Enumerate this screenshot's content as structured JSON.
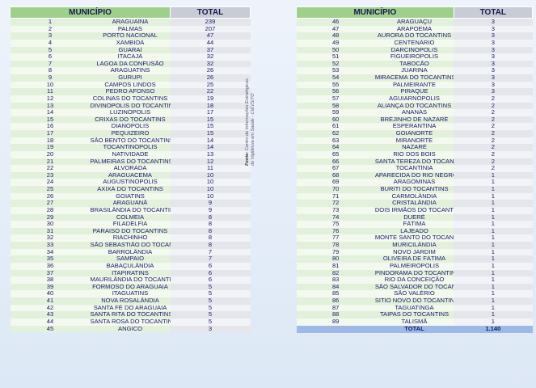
{
  "headers": {
    "municipio": "MUNICÍPIO",
    "total": "TOTAL"
  },
  "source": {
    "label": "Fonte:",
    "line1": "Centro de Informações Estratégicas",
    "line2": "do Vigilância em Saúde - CIEVS/TO"
  },
  "left_rows": [
    [
      "1",
      "ARAGUAÍNA",
      "239"
    ],
    [
      "2",
      "PALMAS",
      "207"
    ],
    [
      "3",
      "PORTO NACIONAL",
      "47"
    ],
    [
      "4",
      "XAMBIOÁ",
      "44"
    ],
    [
      "5",
      "GUARAÍ",
      "37"
    ],
    [
      "6",
      "ITACAJÁ",
      "32"
    ],
    [
      "7",
      "LAGOA DA CONFUSÃO",
      "32"
    ],
    [
      "8",
      "ARAGUATINS",
      "26"
    ],
    [
      "9",
      "GURUPI",
      "26"
    ],
    [
      "10",
      "CAMPOS LINDOS",
      "25"
    ],
    [
      "11",
      "PEDRO AFONSO",
      "22"
    ],
    [
      "12",
      "COLINAS DO TOCANTINS",
      "19"
    ],
    [
      "13",
      "DIVINÓPOLIS DO TOCANTINS",
      "18"
    ],
    [
      "14",
      "LUZINÓPOLIS",
      "17"
    ],
    [
      "15",
      "CRIXAS DO TOCANTINS",
      "15"
    ],
    [
      "16",
      "DIANÓPOLIS",
      "15"
    ],
    [
      "17",
      "PEQUIZEIRO",
      "15"
    ],
    [
      "18",
      "SÃO BENTO DO TOCANTINS",
      "14"
    ],
    [
      "19",
      "TOCANTINÓPOLIS",
      "14"
    ],
    [
      "20",
      "NATIVIDADE",
      "13"
    ],
    [
      "21",
      "PALMEIRAS DO TOCANTINS",
      "12"
    ],
    [
      "22",
      "ALVORADA",
      "11"
    ],
    [
      "23",
      "ARAGUACEMA",
      "10"
    ],
    [
      "24",
      "AUGUSTINÓPOLIS",
      "10"
    ],
    [
      "25",
      "AXIXÁ DO TOCANTINS",
      "10"
    ],
    [
      "26",
      "GOIATINS",
      "10"
    ],
    [
      "27",
      "ARAGUANÃ",
      "9"
    ],
    [
      "28",
      "BRASILÂNDIA DO TOCANTINS",
      "9"
    ],
    [
      "29",
      "COLMEIA",
      "8"
    ],
    [
      "30",
      "FILADÉLFIA",
      "8"
    ],
    [
      "31",
      "PARAISO DO TOCANTINS",
      "8"
    ],
    [
      "32",
      "RIACHINHO",
      "8"
    ],
    [
      "33",
      "SÃO SEBASTIÃO DO TOCANTINS",
      "8"
    ],
    [
      "34",
      "BARROLÂNDIA",
      "7"
    ],
    [
      "35",
      "SAMPAIO",
      "7"
    ],
    [
      "36",
      "BABAÇULÂNDIA",
      "6"
    ],
    [
      "37",
      "ITAPIRATINS",
      "6"
    ],
    [
      "38",
      "MAURILÂNDIA DO TOCANTINS",
      "6"
    ],
    [
      "39",
      "FORMOSO DO ARAGUAIA",
      "5"
    ],
    [
      "40",
      "ITAGUATINS",
      "5"
    ],
    [
      "41",
      "NOVA ROSALÂNDIA",
      "5"
    ],
    [
      "42",
      "SANTA FÉ DO ARAGUAIA",
      "5"
    ],
    [
      "43",
      "SANTA RITA DO TOCANTINS",
      "5"
    ],
    [
      "44",
      "SANTA ROSA DO TOCANTINS",
      "5"
    ],
    [
      "45",
      "ANGICO",
      "3"
    ]
  ],
  "right_rows": [
    [
      "46",
      "ARAGUAÇU",
      "3"
    ],
    [
      "47",
      "ARAPOEMA",
      "3"
    ],
    [
      "48",
      "AURORA DO TOCANTINS",
      "3"
    ],
    [
      "49",
      "CENTENÁRIO",
      "3"
    ],
    [
      "50",
      "DARCINÓPOLIS",
      "3"
    ],
    [
      "51",
      "FIGUEIRÓPOLIS",
      "3"
    ],
    [
      "52",
      "TABOCÃO",
      "3"
    ],
    [
      "53",
      "JUARINA",
      "3"
    ],
    [
      "54",
      "MIRACEMA DO TOCANTINS",
      "3"
    ],
    [
      "55",
      "PALMEIRANTE",
      "3"
    ],
    [
      "56",
      "PIRAQUE",
      "3"
    ],
    [
      "57",
      "AGUIARNÓPOLIS",
      "2"
    ],
    [
      "58",
      "ALIANÇA DO TOCANTINS",
      "2"
    ],
    [
      "59",
      "ANANÁS",
      "2"
    ],
    [
      "60",
      "BREJINHO DE NAZARÉ",
      "2"
    ],
    [
      "61",
      "ESPERANTINA",
      "2"
    ],
    [
      "62",
      "GOIANORTE",
      "2"
    ],
    [
      "63",
      "MIRANORTE",
      "2"
    ],
    [
      "64",
      "NAZARÉ",
      "2"
    ],
    [
      "65",
      "RIO DOS BOIS",
      "2"
    ],
    [
      "66",
      "SANTA TEREZA DO TOCANTINS",
      "2"
    ],
    [
      "67",
      "TOCANTÍNIA",
      "2"
    ],
    [
      "68",
      "APARECIDA DO RIO NEGRO",
      "1"
    ],
    [
      "69",
      "ARAGOMINAS",
      "1"
    ],
    [
      "70",
      "BURITI DO TOCANTINS",
      "1"
    ],
    [
      "71",
      "CARMOLÂNDIA",
      "1"
    ],
    [
      "72",
      "CRISTALÂNDIA",
      "1"
    ],
    [
      "73",
      "DOIS IRMÃOS DO TOCANTINS",
      "1"
    ],
    [
      "74",
      "DUERÉ",
      "1"
    ],
    [
      "75",
      "FÁTIMA",
      "1"
    ],
    [
      "76",
      "LAJEADO",
      "1"
    ],
    [
      "77",
      "MONTE SANTO DO TOCANTINS",
      "1"
    ],
    [
      "78",
      "MURICILÂNDIA",
      "1"
    ],
    [
      "79",
      "NOVO JARDIM",
      "1"
    ],
    [
      "80",
      "OLIVEIRA DE FÁTIMA",
      "1"
    ],
    [
      "81",
      "PALMEIRÓPOLIS",
      "1"
    ],
    [
      "82",
      "PINDORAMA DO TOCANTINS",
      "1"
    ],
    [
      "83",
      "RIO DA CONCEIÇÃO",
      "1"
    ],
    [
      "84",
      "SÃO SALVADOR DO TOCANTINS",
      "1"
    ],
    [
      "85",
      "SÃO VALÉRIO",
      "1"
    ],
    [
      "86",
      "SITIO NOVO DO TOCANTINS",
      "1"
    ],
    [
      "87",
      "TAGUATINGA",
      "1"
    ],
    [
      "88",
      "TAIPAS DO TOCANTINS",
      "1"
    ],
    [
      "89",
      "TALISMÃ",
      "1"
    ]
  ],
  "total_row": {
    "label": "TOTAL",
    "value": "1.140"
  }
}
